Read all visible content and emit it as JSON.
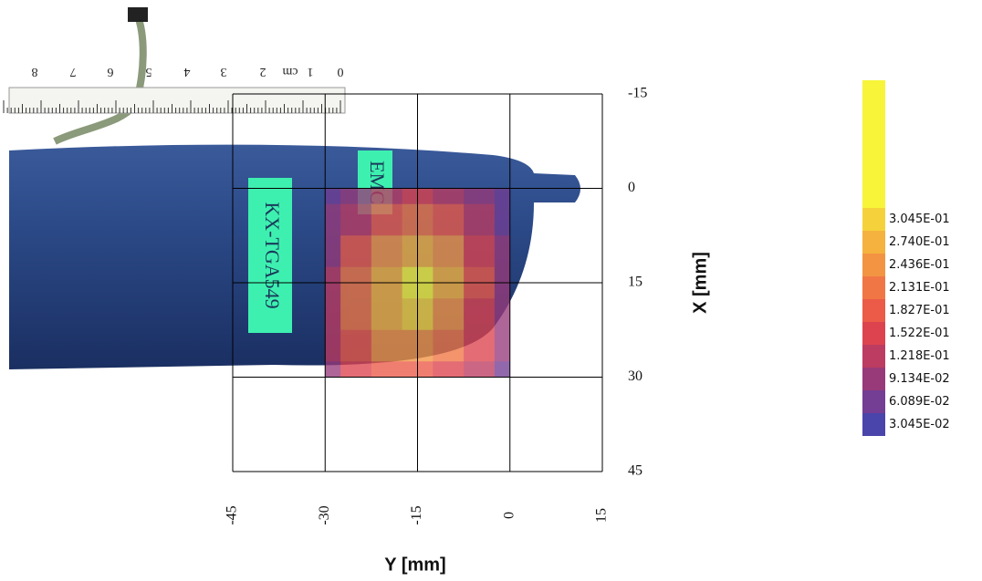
{
  "chart_data": {
    "type": "heatmap",
    "x_label": "Y [mm]",
    "y_label": "X [mm]",
    "xlim": [
      -45,
      15
    ],
    "xticks": [
      -45,
      -30,
      -15,
      0,
      15
    ],
    "ylim": [
      -15,
      45
    ],
    "yticks": [
      -15,
      0,
      15,
      30,
      45
    ],
    "grid": true,
    "x": [
      -30,
      -25,
      -20,
      -15,
      -10,
      -5,
      0
    ],
    "y": [
      0,
      5,
      10,
      15,
      20,
      25,
      30
    ],
    "z": [
      [
        0.05,
        0.08,
        0.12,
        0.15,
        0.12,
        0.08,
        0.05
      ],
      [
        0.07,
        0.12,
        0.18,
        0.21,
        0.17,
        0.11,
        0.06
      ],
      [
        0.09,
        0.16,
        0.23,
        0.27,
        0.22,
        0.14,
        0.07
      ],
      [
        0.11,
        0.19,
        0.27,
        0.31,
        0.25,
        0.16,
        0.08
      ],
      [
        0.12,
        0.19,
        0.26,
        0.3,
        0.24,
        0.15,
        0.08
      ],
      [
        0.11,
        0.17,
        0.22,
        0.24,
        0.2,
        0.13,
        0.07
      ],
      [
        0.09,
        0.14,
        0.17,
        0.18,
        0.15,
        0.11,
        0.06
      ]
    ],
    "colorbar": {
      "ticks": [
        {
          "value": 0.3045,
          "label": "3.045E-01"
        },
        {
          "value": 0.274,
          "label": "2.740E-01"
        },
        {
          "value": 0.2436,
          "label": "2.436E-01"
        },
        {
          "value": 0.2131,
          "label": "2.131E-01"
        },
        {
          "value": 0.1827,
          "label": "1.827E-01"
        },
        {
          "value": 0.1522,
          "label": "1.522E-01"
        },
        {
          "value": 0.1218,
          "label": "1.218E-01"
        },
        {
          "value": 0.09134,
          "label": "9.134E-02"
        },
        {
          "value": 0.06089,
          "label": "6.089E-02"
        },
        {
          "value": 0.03045,
          "label": "3.045E-02"
        }
      ],
      "colors": [
        "#f7f43a",
        "#f5d23c",
        "#f5b23e",
        "#f39443",
        "#f07745",
        "#ec5a48",
        "#dd434f",
        "#bd3c62",
        "#983a7a",
        "#733e94",
        "#4a45ab"
      ]
    }
  },
  "photo": {
    "labels": [
      "KX-TGA549",
      "EMC"
    ],
    "ruler": [
      "0",
      "1",
      "2",
      "3",
      "4",
      "5",
      "6",
      "7",
      "8"
    ],
    "ruler_unit": "cm"
  }
}
